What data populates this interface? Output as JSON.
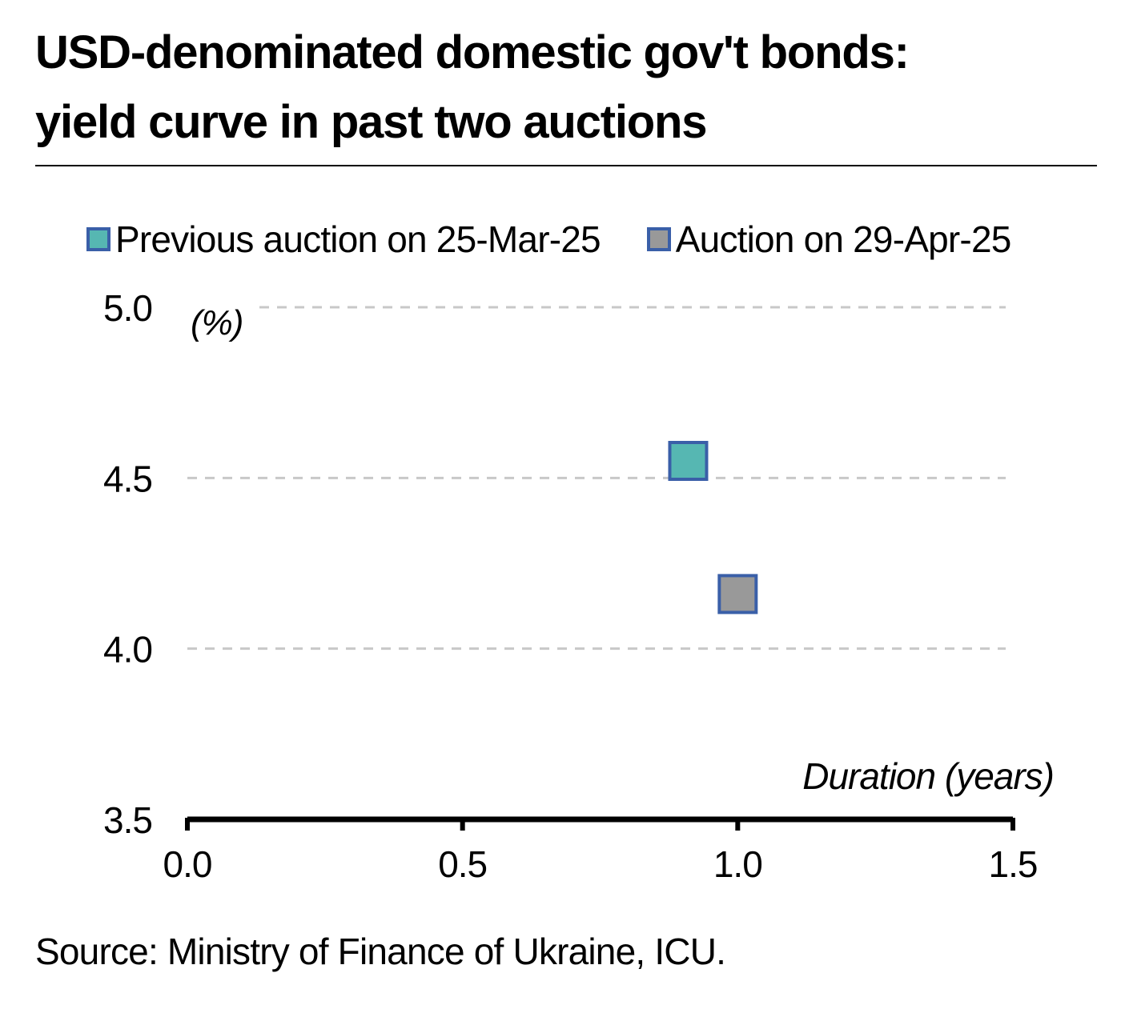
{
  "title": {
    "line1": "USD-denominated domestic gov't bonds:",
    "line2": "yield curve in past two auctions"
  },
  "legend": [
    {
      "label": "Previous auction on 25-Mar-25",
      "color": "#56b7b2"
    },
    {
      "label": "Auction on 29-Apr-25",
      "color": "#999999"
    }
  ],
  "source": "Source: Ministry of Finance of Ukraine, ICU.",
  "colors": {
    "marker_border": "#3a5fa8",
    "gridline": "#c8c8c8",
    "axis": "#000000"
  },
  "chart_data": {
    "type": "scatter",
    "title": "USD-denominated domestic gov't bonds: yield curve in past two auctions",
    "xlabel": "Duration (years)",
    "ylabel": "(%)",
    "xlim": [
      0,
      1.5
    ],
    "ylim": [
      3.5,
      5.0
    ],
    "x_ticks": [
      "0.0",
      "0.5",
      "1.0",
      "1.5"
    ],
    "y_ticks": [
      "3.5",
      "4.0",
      "4.5",
      "5.0"
    ],
    "grid": "horizontal dashed",
    "legend_position": "top",
    "series": [
      {
        "name": "Previous auction on 25-Mar-25",
        "color": "#56b7b2",
        "points": [
          {
            "x": 0.91,
            "y": 4.55
          }
        ]
      },
      {
        "name": "Auction on 29-Apr-25",
        "color": "#999999",
        "points": [
          {
            "x": 1.0,
            "y": 4.16
          }
        ]
      }
    ]
  }
}
